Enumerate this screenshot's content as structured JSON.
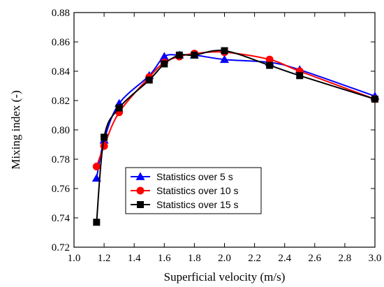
{
  "chart_data": {
    "type": "line",
    "xlabel": "Superficial velocity (m/s)",
    "ylabel": "Mixing index (-)",
    "xlim": [
      1.0,
      3.0
    ],
    "ylim": [
      0.72,
      0.88
    ],
    "x_ticks": [
      "1.0",
      "1.2",
      "1.4",
      "1.6",
      "1.8",
      "2.0",
      "2.2",
      "2.4",
      "2.6",
      "2.8",
      "3.0"
    ],
    "y_ticks": [
      "0.72",
      "0.74",
      "0.76",
      "0.78",
      "0.80",
      "0.82",
      "0.84",
      "0.86",
      "0.88"
    ],
    "legend_position": "center",
    "series": [
      {
        "name": "Statistics over 5 s",
        "color": "#0000ff",
        "marker": "triangle",
        "x": [
          1.15,
          1.2,
          1.3,
          1.5,
          1.6,
          1.7,
          1.8,
          2.0,
          2.3,
          2.5,
          3.0
        ],
        "y": [
          0.767,
          0.793,
          0.818,
          0.837,
          0.85,
          0.851,
          0.851,
          0.848,
          0.846,
          0.841,
          0.823
        ]
      },
      {
        "name": "Statistics over 10 s",
        "color": "#ff0000",
        "marker": "circle",
        "x": [
          1.15,
          1.2,
          1.3,
          1.5,
          1.6,
          1.7,
          1.8,
          2.0,
          2.3,
          2.5,
          3.0
        ],
        "y": [
          0.775,
          0.789,
          0.812,
          0.836,
          0.846,
          0.85,
          0.852,
          0.853,
          0.848,
          0.84,
          0.821
        ]
      },
      {
        "name": "Statistics over 15 s",
        "color": "#000000",
        "marker": "square",
        "x": [
          1.15,
          1.2,
          1.3,
          1.5,
          1.6,
          1.7,
          1.8,
          2.0,
          2.3,
          2.5,
          3.0
        ],
        "y": [
          0.737,
          0.795,
          0.815,
          0.834,
          0.845,
          0.851,
          0.851,
          0.854,
          0.844,
          0.837,
          0.821
        ]
      }
    ]
  }
}
